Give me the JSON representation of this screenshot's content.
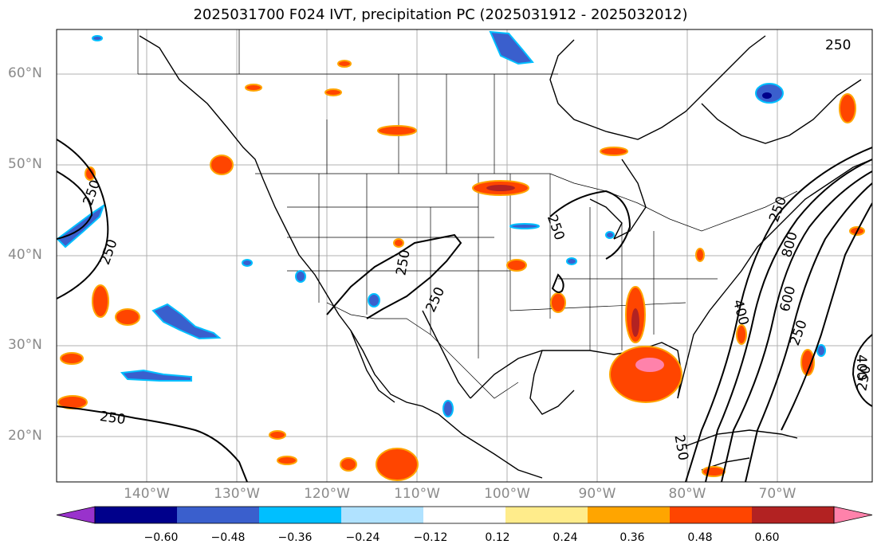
{
  "title": "2025031700 F024 IVT, precipitation PC (2025031912 - 2025032012)",
  "lat_labels": [
    "60°N",
    "50°N",
    "40°N",
    "30°N",
    "20°N"
  ],
  "lon_labels": [
    "140°W",
    "130°W",
    "120°W",
    "110°W",
    "100°W",
    "90°W",
    "80°W",
    "70°W"
  ],
  "contour_labels": [
    "250",
    "250",
    "250",
    "250",
    "250",
    "250",
    "250",
    "250",
    "250",
    "250",
    "400",
    "600",
    "800",
    "250",
    "400"
  ],
  "colorbar": {
    "ticks": [
      "−0.60",
      "−0.48",
      "−0.36",
      "−0.24",
      "−0.12",
      "0.12",
      "0.24",
      "0.36",
      "0.48",
      "0.60"
    ],
    "colors": [
      "#9932cc",
      "#00008b",
      "#3a5fcd",
      "#00bfff",
      "#b0e2ff",
      "#ffffff",
      "#ffec8b",
      "#ffa500",
      "#ff4500",
      "#b22222",
      "#ff82ab"
    ]
  }
}
